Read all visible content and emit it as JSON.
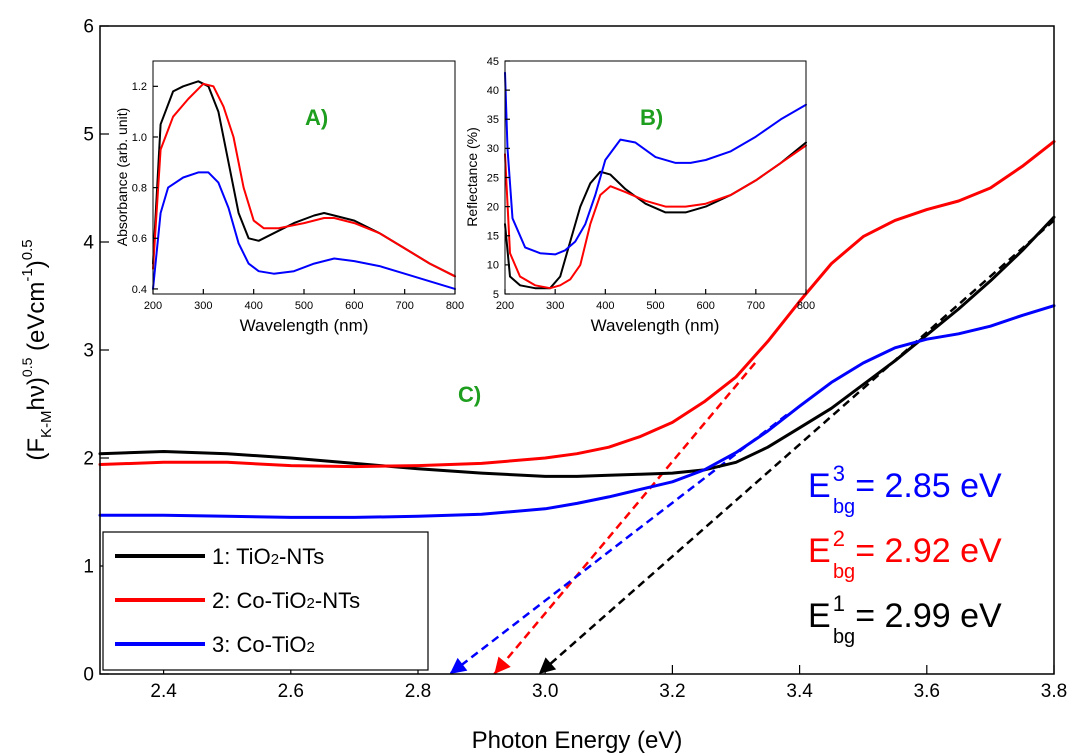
{
  "colors": {
    "series1": "#000000",
    "series2": "#ff0000",
    "series3": "#0000ff",
    "panel_label": "#1e9e1e"
  },
  "chart_data": [
    {
      "id": "main",
      "type": "line",
      "panel_label": "C)",
      "xlabel": "Photon Energy (eV)",
      "ylabel": {
        "open": "(F",
        "sub1": "K-M",
        "mid": "hν)",
        "sup1": "0.5",
        "mid2": " (eVcm",
        "sup2": "-1",
        "close": ")",
        "sup3": "0.5"
      },
      "xlim": [
        2.3,
        3.8
      ],
      "ylim": [
        0,
        6
      ],
      "xticks": [
        "2.4",
        "2.6",
        "2.8",
        "3.0",
        "3.2",
        "3.4",
        "3.6",
        "3.8"
      ],
      "yticks": [
        "0",
        "1",
        "2",
        "3",
        "4",
        "5",
        "6"
      ],
      "grid": false,
      "legend_position": "bottom-left",
      "series": [
        {
          "name": "1: TiO2-NTs",
          "label_parts": [
            "1: TiO",
            "2",
            "-NTs"
          ],
          "color": "#000000",
          "x": [
            2.3,
            2.4,
            2.5,
            2.6,
            2.7,
            2.8,
            2.9,
            3.0,
            3.05,
            3.1,
            3.15,
            3.2,
            3.25,
            3.3,
            3.35,
            3.4,
            3.45,
            3.5,
            3.55,
            3.6,
            3.65,
            3.7,
            3.75,
            3.8
          ],
          "y": [
            2.04,
            2.06,
            2.04,
            2.0,
            1.95,
            1.9,
            1.86,
            1.83,
            1.83,
            1.84,
            1.85,
            1.86,
            1.89,
            1.96,
            2.1,
            2.28,
            2.46,
            2.68,
            2.9,
            3.14,
            3.38,
            3.64,
            3.92,
            4.23
          ]
        },
        {
          "name": "2: Co-TiO2-NTs",
          "label_parts": [
            "2: Co-TiO",
            "2",
            "-NTs"
          ],
          "color": "#ff0000",
          "x": [
            2.3,
            2.4,
            2.5,
            2.6,
            2.7,
            2.8,
            2.9,
            3.0,
            3.05,
            3.1,
            3.15,
            3.2,
            3.25,
            3.3,
            3.35,
            3.4,
            3.45,
            3.5,
            3.55,
            3.6,
            3.65,
            3.7,
            3.75,
            3.8
          ],
          "y": [
            1.94,
            1.96,
            1.96,
            1.93,
            1.92,
            1.93,
            1.95,
            2.0,
            2.04,
            2.1,
            2.2,
            2.33,
            2.52,
            2.75,
            3.08,
            3.45,
            3.8,
            4.05,
            4.2,
            4.3,
            4.38,
            4.5,
            4.7,
            4.93
          ]
        },
        {
          "name": "3: Co-TiO2",
          "label_parts": [
            "3: Co-TiO",
            "2",
            ""
          ],
          "color": "#0000ff",
          "x": [
            2.3,
            2.4,
            2.5,
            2.6,
            2.7,
            2.8,
            2.9,
            3.0,
            3.05,
            3.1,
            3.15,
            3.2,
            3.25,
            3.3,
            3.35,
            3.4,
            3.45,
            3.5,
            3.55,
            3.6,
            3.65,
            3.7,
            3.75,
            3.8
          ],
          "y": [
            1.47,
            1.47,
            1.46,
            1.45,
            1.45,
            1.46,
            1.48,
            1.53,
            1.58,
            1.64,
            1.71,
            1.78,
            1.89,
            2.05,
            2.25,
            2.48,
            2.7,
            2.88,
            3.02,
            3.1,
            3.15,
            3.22,
            3.32,
            3.41
          ]
        }
      ],
      "tangent_lines": [
        {
          "series": "1: TiO2-NTs",
          "color": "#000000",
          "from": [
            3.8,
            4.2
          ],
          "to": [
            2.99,
            0
          ]
        },
        {
          "series": "2: Co-TiO2-NTs",
          "color": "#ff0000",
          "from": [
            3.33,
            2.88
          ],
          "to": [
            2.92,
            0
          ]
        },
        {
          "series": "3: Co-TiO2",
          "color": "#0000ff",
          "from": [
            3.38,
            2.4
          ],
          "to": [
            2.85,
            0
          ]
        }
      ],
      "annotations": [
        {
          "sup": "3",
          "sub": "bg",
          "value": "= 2.85 eV",
          "color": "#0000ff"
        },
        {
          "sup": "2",
          "sub": "bg",
          "value": "= 2.92 eV",
          "color": "#ff0000"
        },
        {
          "sup": "1",
          "sub": "bg",
          "value": "= 2.99 eV",
          "color": "#000000"
        }
      ]
    },
    {
      "id": "insetA",
      "type": "line",
      "panel_label": "A)",
      "xlabel": "Wavelength (nm)",
      "ylabel": "Absorbance (arb. unit)",
      "xlim": [
        200,
        800
      ],
      "ylim": [
        0.38,
        1.3
      ],
      "xticks": [
        "200",
        "300",
        "400",
        "500",
        "600",
        "700",
        "800"
      ],
      "yticks": [
        "0.4",
        "0.6",
        "0.8",
        "1.0",
        "1.2"
      ],
      "series": [
        {
          "name": "1",
          "color": "#000000",
          "x": [
            200,
            215,
            240,
            260,
            290,
            310,
            330,
            350,
            370,
            390,
            410,
            440,
            480,
            520,
            540,
            560,
            600,
            650,
            700,
            750,
            800
          ],
          "y": [
            0.5,
            1.05,
            1.18,
            1.2,
            1.22,
            1.2,
            1.1,
            0.9,
            0.7,
            0.6,
            0.59,
            0.62,
            0.66,
            0.69,
            0.7,
            0.69,
            0.67,
            0.62,
            0.56,
            0.5,
            0.45
          ]
        },
        {
          "name": "2",
          "color": "#ff0000",
          "x": [
            200,
            215,
            240,
            270,
            300,
            320,
            340,
            360,
            380,
            400,
            420,
            450,
            500,
            540,
            560,
            600,
            650,
            700,
            750,
            800
          ],
          "y": [
            0.48,
            0.95,
            1.08,
            1.15,
            1.21,
            1.2,
            1.12,
            1.0,
            0.8,
            0.67,
            0.64,
            0.64,
            0.66,
            0.68,
            0.68,
            0.66,
            0.62,
            0.56,
            0.5,
            0.45
          ]
        },
        {
          "name": "3",
          "color": "#0000ff",
          "x": [
            200,
            215,
            230,
            260,
            290,
            310,
            330,
            350,
            370,
            390,
            410,
            440,
            480,
            520,
            560,
            600,
            650,
            700,
            750,
            800
          ],
          "y": [
            0.4,
            0.7,
            0.8,
            0.84,
            0.86,
            0.86,
            0.82,
            0.72,
            0.58,
            0.5,
            0.47,
            0.46,
            0.47,
            0.5,
            0.52,
            0.51,
            0.49,
            0.46,
            0.43,
            0.4
          ]
        }
      ]
    },
    {
      "id": "insetB",
      "type": "line",
      "panel_label": "B)",
      "xlabel": "Wavelength (nm)",
      "ylabel": "Reflectance (%)",
      "xlim": [
        200,
        800
      ],
      "ylim": [
        5,
        45
      ],
      "xticks": [
        "200",
        "300",
        "400",
        "500",
        "600",
        "700",
        "800"
      ],
      "yticks": [
        "5",
        "10",
        "15",
        "20",
        "25",
        "30",
        "35",
        "40",
        "45"
      ],
      "series": [
        {
          "name": "1",
          "color": "#000000",
          "x": [
            200,
            210,
            230,
            260,
            290,
            310,
            330,
            350,
            370,
            390,
            410,
            440,
            480,
            520,
            560,
            600,
            650,
            700,
            750,
            800
          ],
          "y": [
            17,
            8,
            6.5,
            6,
            6,
            8,
            14,
            20,
            24,
            26,
            25.5,
            23,
            20.5,
            19,
            19,
            20,
            22,
            24.5,
            27.5,
            31
          ]
        },
        {
          "name": "2",
          "color": "#ff0000",
          "x": [
            200,
            210,
            230,
            260,
            290,
            310,
            330,
            350,
            370,
            390,
            410,
            440,
            480,
            520,
            560,
            600,
            650,
            700,
            750,
            800
          ],
          "y": [
            29,
            12,
            8,
            6.5,
            6,
            6.5,
            7.5,
            10,
            17,
            22,
            23.5,
            22.5,
            21,
            20,
            20,
            20.5,
            22,
            24.5,
            27.5,
            30.5
          ]
        },
        {
          "name": "3",
          "color": "#0000ff",
          "x": [
            200,
            205,
            215,
            240,
            270,
            300,
            320,
            340,
            360,
            380,
            400,
            430,
            460,
            500,
            540,
            570,
            600,
            650,
            700,
            750,
            800
          ],
          "y": [
            43,
            30,
            18,
            13,
            12,
            11.8,
            12.5,
            14,
            17,
            22,
            28,
            31.5,
            31,
            28.5,
            27.5,
            27.5,
            28,
            29.5,
            32,
            35,
            37.5
          ]
        }
      ]
    }
  ]
}
